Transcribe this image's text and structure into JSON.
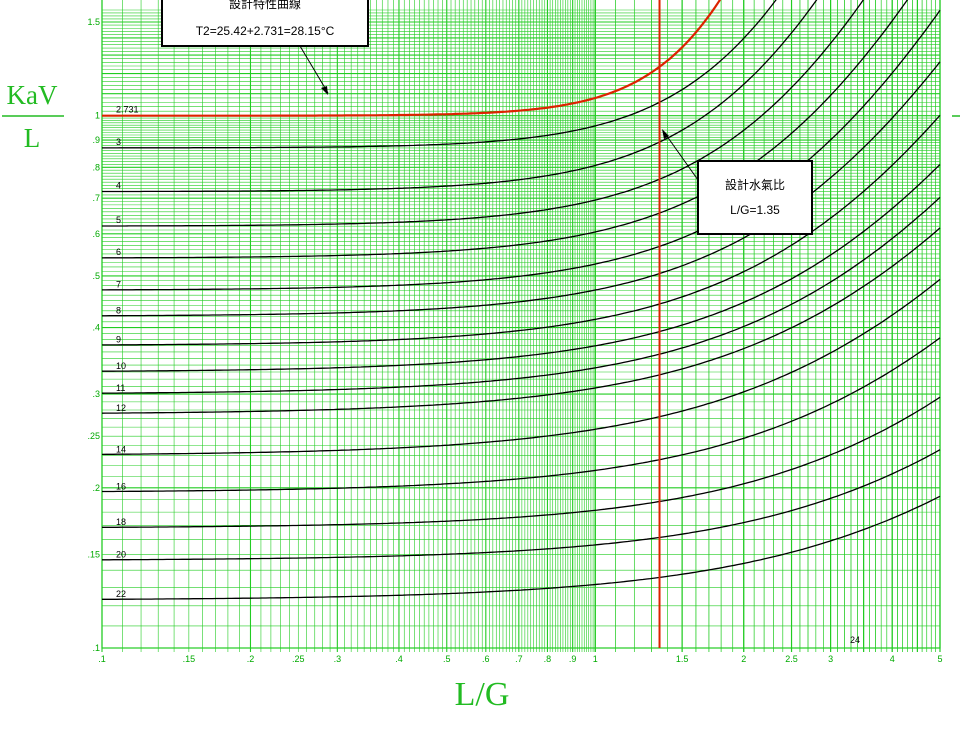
{
  "chart_data": {
    "type": "line",
    "x_scale": "log",
    "y_scale": "log",
    "xlim": [
      0.1,
      5
    ],
    "ylim": [
      0.1,
      1.5
    ],
    "xlabel": "L/G",
    "ylabel": [
      "KaV",
      "L"
    ],
    "x_ticks": [
      {
        "v": 0.1,
        "t": ".1"
      },
      {
        "v": 0.15,
        "t": ".15"
      },
      {
        "v": 0.2,
        "t": ".2"
      },
      {
        "v": 0.25,
        "t": ".25"
      },
      {
        "v": 0.3,
        "t": ".3"
      },
      {
        "v": 0.4,
        "t": ".4"
      },
      {
        "v": 0.5,
        "t": ".5"
      },
      {
        "v": 0.6,
        "t": ".6"
      },
      {
        "v": 0.7,
        "t": ".7"
      },
      {
        "v": 0.8,
        "t": ".8"
      },
      {
        "v": 0.9,
        "t": ".9"
      },
      {
        "v": 1,
        "t": "1"
      },
      {
        "v": 1.5,
        "t": "1.5"
      },
      {
        "v": 2,
        "t": "2"
      },
      {
        "v": 2.5,
        "t": "2.5"
      },
      {
        "v": 3,
        "t": "3"
      },
      {
        "v": 4,
        "t": "4"
      },
      {
        "v": 5,
        "t": "5"
      }
    ],
    "y_ticks": [
      {
        "v": 1.5,
        "t": "1.5"
      },
      {
        "v": 1,
        "t": "1"
      },
      {
        "v": 0.9,
        "t": ".9"
      },
      {
        "v": 0.8,
        "t": ".8"
      },
      {
        "v": 0.7,
        "t": ".7"
      },
      {
        "v": 0.6,
        "t": ".6"
      },
      {
        "v": 0.5,
        "t": ".5"
      },
      {
        "v": 0.4,
        "t": ".4"
      },
      {
        "v": 0.3,
        "t": ".3"
      },
      {
        "v": 0.25,
        "t": ".25"
      },
      {
        "v": 0.2,
        "t": ".2"
      },
      {
        "v": 0.15,
        "t": ".15"
      },
      {
        "v": 0.1,
        "t": ".1"
      }
    ],
    "grid": true,
    "curves": [
      {
        "label": "2.731",
        "y0": 1.0,
        "k": 0.08,
        "m": 3.6,
        "color": "#dd2200",
        "highlight": true
      },
      {
        "label": "3",
        "y0": 0.87,
        "k": 0.1,
        "m": 2.6,
        "color": "#000000"
      },
      {
        "label": "4",
        "y0": 0.72,
        "k": 0.12,
        "m": 2.3,
        "color": "#000000"
      },
      {
        "label": "5",
        "y0": 0.62,
        "k": 0.12,
        "m": 2.1,
        "color": "#000000"
      },
      {
        "label": "6",
        "y0": 0.54,
        "k": 0.12,
        "m": 1.95,
        "color": "#000000"
      },
      {
        "label": "7",
        "y0": 0.47,
        "k": 0.12,
        "m": 1.85,
        "color": "#000000"
      },
      {
        "label": "8",
        "y0": 0.42,
        "k": 0.12,
        "m": 1.75,
        "color": "#000000"
      },
      {
        "label": "9",
        "y0": 0.37,
        "k": 0.12,
        "m": 1.65,
        "color": "#000000"
      },
      {
        "label": "10",
        "y0": 0.33,
        "k": 0.12,
        "m": 1.55,
        "color": "#000000"
      },
      {
        "label": "11",
        "y0": 0.3,
        "k": 0.12,
        "m": 1.5,
        "color": "#000000"
      },
      {
        "label": "12",
        "y0": 0.275,
        "k": 0.12,
        "m": 1.45,
        "color": "#000000"
      },
      {
        "label": "14",
        "y0": 0.23,
        "k": 0.12,
        "m": 1.4,
        "color": "#000000"
      },
      {
        "label": "16",
        "y0": 0.196,
        "k": 0.1,
        "m": 1.4,
        "color": "#000000"
      },
      {
        "label": "18",
        "y0": 0.168,
        "k": 0.08,
        "m": 1.4,
        "color": "#000000"
      },
      {
        "label": "20",
        "y0": 0.146,
        "k": 0.07,
        "m": 1.35,
        "color": "#000000"
      },
      {
        "label": "22",
        "y0": 0.123,
        "k": 0.07,
        "m": 1.3,
        "color": "#000000"
      }
    ],
    "end_label": {
      "text": "24"
    },
    "design_line": {
      "x": 1.35,
      "color": "#dd2200"
    },
    "annotations": [
      {
        "id": "design-curve",
        "lines": [
          "設計特性曲線",
          "T2=25.42+2.731=28.15°C"
        ]
      },
      {
        "id": "design-ratio",
        "lines": [
          "設計水氣比",
          "L/G=1.35"
        ]
      }
    ]
  }
}
